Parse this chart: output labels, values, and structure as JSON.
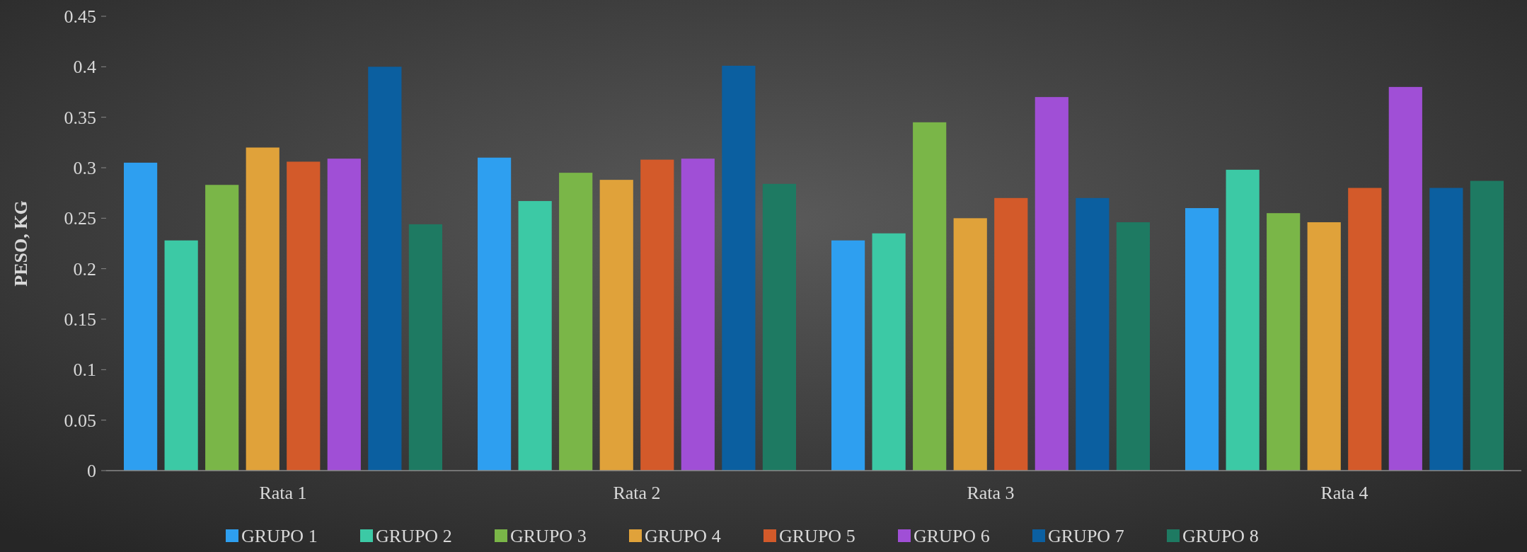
{
  "chart_data": {
    "type": "bar",
    "ylabel": "PESO, KG",
    "categories": [
      "Rata 1",
      "Rata 2",
      "Rata 3",
      "Rata 4"
    ],
    "series": [
      {
        "name": "GRUPO 1",
        "color": "#2e9ff0",
        "values": [
          0.305,
          0.31,
          0.228,
          0.26
        ]
      },
      {
        "name": "GRUPO 2",
        "color": "#3cc9a5",
        "values": [
          0.228,
          0.267,
          0.235,
          0.298
        ]
      },
      {
        "name": "GRUPO 3",
        "color": "#7ab648",
        "values": [
          0.283,
          0.295,
          0.345,
          0.255
        ]
      },
      {
        "name": "GRUPO 4",
        "color": "#e0a23a",
        "values": [
          0.32,
          0.288,
          0.25,
          0.246
        ]
      },
      {
        "name": "GRUPO 5",
        "color": "#d35a2a",
        "values": [
          0.306,
          0.308,
          0.27,
          0.28
        ]
      },
      {
        "name": "GRUPO 6",
        "color": "#a04fd6",
        "values": [
          0.309,
          0.309,
          0.37,
          0.38
        ]
      },
      {
        "name": "GRUPO 7",
        "color": "#0b5fa0",
        "values": [
          0.4,
          0.401,
          0.27,
          0.28
        ]
      },
      {
        "name": "GRUPO 8",
        "color": "#1e7a62",
        "values": [
          0.244,
          0.284,
          0.246,
          0.287
        ]
      }
    ],
    "ylim": [
      0,
      0.45
    ],
    "yticks": [
      0,
      0.05,
      0.1,
      0.15,
      0.2,
      0.25,
      0.3,
      0.35,
      0.4,
      0.45
    ],
    "legend": "bottom"
  }
}
